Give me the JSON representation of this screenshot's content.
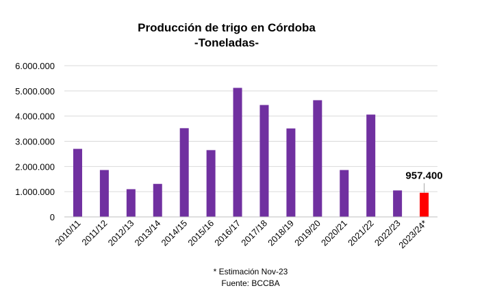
{
  "chart_data": {
    "type": "bar",
    "title": "Producción de trigo en Córdoba",
    "subtitle": "-Toneladas-",
    "xlabel": "",
    "ylabel": "",
    "ylim": [
      0,
      6000000
    ],
    "yticks": [
      "0",
      "1.000.000",
      "2.000.000",
      "3.000.000",
      "4.000.000",
      "5.000.000",
      "6.000.000"
    ],
    "ytick_values": [
      0,
      1000000,
      2000000,
      3000000,
      4000000,
      5000000,
      6000000
    ],
    "grid": true,
    "categories": [
      "2010/11",
      "2011/12",
      "2012/13",
      "2013/14",
      "2014/15",
      "2015/16",
      "2016/17",
      "2017/18",
      "2018/19",
      "2019/20",
      "2020/21",
      "2021/22",
      "2022/23",
      "2023/24*"
    ],
    "values": [
      2700000,
      1860000,
      1100000,
      1310000,
      3520000,
      2650000,
      5120000,
      4440000,
      3510000,
      4630000,
      1860000,
      4060000,
      1050000,
      957400
    ],
    "colors": [
      "#7030A0",
      "#7030A0",
      "#7030A0",
      "#7030A0",
      "#7030A0",
      "#7030A0",
      "#7030A0",
      "#7030A0",
      "#7030A0",
      "#7030A0",
      "#7030A0",
      "#7030A0",
      "#7030A0",
      "#FF0000"
    ],
    "highlight_label": "957.400",
    "notes": [
      "* Estimación Nov-23",
      "Fuente: BCCBA"
    ]
  }
}
